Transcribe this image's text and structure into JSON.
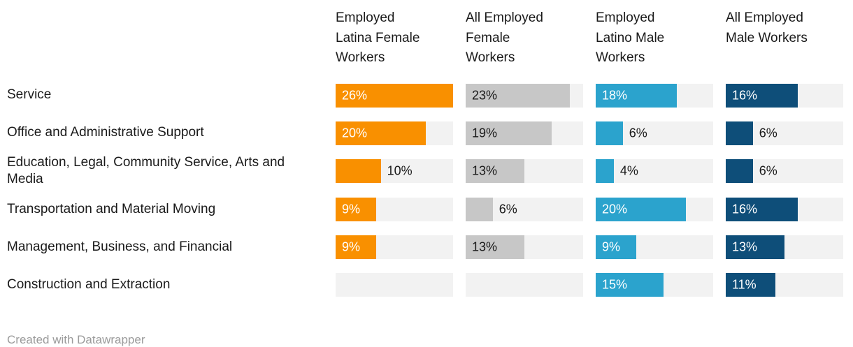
{
  "chart_data": {
    "type": "bar",
    "orientation": "horizontal",
    "value_unit": "%",
    "axis_max": 26,
    "grid": false,
    "legend_position": "column-headers",
    "track_color": "#F2F2F2",
    "outside_label_color": "#1a1a1a",
    "categories": [
      "Service",
      "Office and Administrative Support",
      "Education, Legal, Community Service, Arts and Media",
      "Transportation and Material Moving",
      "Management, Business, and Financial",
      "Construction and Extraction"
    ],
    "series": [
      {
        "name": "Employed Latina Female Workers",
        "header_label": "Employed\nLatina Female\nWorkers",
        "color": "#F99000",
        "text_color_inside": "#ffffff",
        "values": [
          26,
          20,
          10,
          9,
          9,
          null
        ],
        "label_inside": [
          true,
          true,
          false,
          true,
          true,
          null
        ]
      },
      {
        "name": "All Employed Female Workers",
        "header_label": "All Employed\nFemale\nWorkers",
        "color": "#C7C7C7",
        "text_color_inside": "#1a1a1a",
        "values": [
          23,
          19,
          13,
          6,
          13,
          null
        ],
        "label_inside": [
          true,
          true,
          true,
          false,
          true,
          null
        ]
      },
      {
        "name": "Employed Latino Male Workers",
        "header_label": "Employed\nLatino Male\nWorkers",
        "color": "#2BA3CD",
        "text_color_inside": "#ffffff",
        "values": [
          18,
          6,
          4,
          20,
          9,
          15
        ],
        "label_inside": [
          true,
          false,
          false,
          true,
          true,
          true
        ]
      },
      {
        "name": "All Employed Male Workers",
        "header_label": "All Employed\nMale Workers",
        "color": "#0E4E79",
        "text_color_inside": "#ffffff",
        "values": [
          16,
          6,
          6,
          16,
          13,
          11
        ],
        "label_inside": [
          true,
          false,
          false,
          true,
          true,
          true
        ]
      }
    ],
    "footer": "Created with Datawrapper"
  }
}
